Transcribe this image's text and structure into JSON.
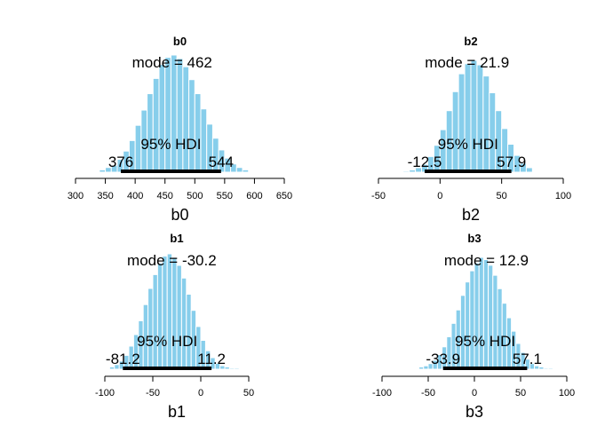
{
  "chart_data": [
    {
      "type": "histogram",
      "param": "b0",
      "title": "b0",
      "xlabel": "b0",
      "mode_label": "mode = 462",
      "hdi_label": "95% HDI",
      "hdi_low_label": "376",
      "hdi_high_label": "544",
      "mode": 462,
      "hdi": [
        376,
        544
      ],
      "xlim": [
        300,
        650
      ],
      "ticks": [
        300,
        350,
        400,
        450,
        500,
        550,
        600,
        650
      ],
      "tick_labels": [
        "300",
        "350",
        "400",
        "450",
        "500",
        "550",
        "600",
        "650"
      ],
      "bins": [
        {
          "x": 345,
          "h": 0.02
        },
        {
          "x": 355,
          "h": 0.04
        },
        {
          "x": 365,
          "h": 0.06
        },
        {
          "x": 375,
          "h": 0.11
        },
        {
          "x": 385,
          "h": 0.18
        },
        {
          "x": 395,
          "h": 0.27
        },
        {
          "x": 405,
          "h": 0.4
        },
        {
          "x": 415,
          "h": 0.53
        },
        {
          "x": 425,
          "h": 0.67
        },
        {
          "x": 435,
          "h": 0.8
        },
        {
          "x": 445,
          "h": 0.92
        },
        {
          "x": 455,
          "h": 0.98
        },
        {
          "x": 465,
          "h": 1.0
        },
        {
          "x": 475,
          "h": 0.97
        },
        {
          "x": 485,
          "h": 0.9
        },
        {
          "x": 495,
          "h": 0.79
        },
        {
          "x": 505,
          "h": 0.67
        },
        {
          "x": 515,
          "h": 0.54
        },
        {
          "x": 525,
          "h": 0.41
        },
        {
          "x": 535,
          "h": 0.29
        },
        {
          "x": 545,
          "h": 0.19
        },
        {
          "x": 555,
          "h": 0.12
        },
        {
          "x": 565,
          "h": 0.07
        },
        {
          "x": 575,
          "h": 0.04
        },
        {
          "x": 585,
          "h": 0.02
        }
      ]
    },
    {
      "type": "histogram",
      "param": "b2",
      "title": "b2",
      "xlabel": "b2",
      "mode_label": "mode = 21.9",
      "hdi_label": "95% HDI",
      "hdi_low_label": "-12.5",
      "hdi_high_label": "57.9",
      "mode": 21.9,
      "hdi": [
        -12.5,
        57.9
      ],
      "xlim": [
        -50,
        100
      ],
      "ticks": [
        -50,
        0,
        50,
        100
      ],
      "tick_labels": [
        "-50",
        "0",
        "50",
        "100"
      ],
      "bins": [
        {
          "x": -27.5,
          "h": 0.01
        },
        {
          "x": -22.5,
          "h": 0.02
        },
        {
          "x": -17.5,
          "h": 0.04
        },
        {
          "x": -12.5,
          "h": 0.07
        },
        {
          "x": -7.5,
          "h": 0.14
        },
        {
          "x": -2.5,
          "h": 0.24
        },
        {
          "x": 2.5,
          "h": 0.38
        },
        {
          "x": 7.5,
          "h": 0.55
        },
        {
          "x": 12.5,
          "h": 0.72
        },
        {
          "x": 17.5,
          "h": 0.88
        },
        {
          "x": 22.5,
          "h": 0.97
        },
        {
          "x": 27.5,
          "h": 1.0
        },
        {
          "x": 32.5,
          "h": 0.96
        },
        {
          "x": 37.5,
          "h": 0.86
        },
        {
          "x": 42.5,
          "h": 0.71
        },
        {
          "x": 47.5,
          "h": 0.55
        },
        {
          "x": 52.5,
          "h": 0.39
        },
        {
          "x": 57.5,
          "h": 0.25
        },
        {
          "x": 62.5,
          "h": 0.15
        },
        {
          "x": 67.5,
          "h": 0.08
        },
        {
          "x": 72.5,
          "h": 0.04
        }
      ]
    },
    {
      "type": "histogram",
      "param": "b1",
      "title": "b1",
      "xlabel": "b1",
      "mode_label": "mode = -30.2",
      "hdi_label": "95% HDI",
      "hdi_low_label": "-81.2",
      "hdi_high_label": "11.2",
      "mode": -30.2,
      "hdi": [
        -81.2,
        11.2
      ],
      "xlim": [
        -100,
        50
      ],
      "ticks": [
        -100,
        -50,
        0,
        50
      ],
      "tick_labels": [
        "-100",
        "-50",
        "0",
        "50"
      ],
      "bins": [
        {
          "x": -92.5,
          "h": 0.02
        },
        {
          "x": -87.5,
          "h": 0.04
        },
        {
          "x": -82.5,
          "h": 0.07
        },
        {
          "x": -77.5,
          "h": 0.12
        },
        {
          "x": -72.5,
          "h": 0.2
        },
        {
          "x": -67.5,
          "h": 0.3
        },
        {
          "x": -62.5,
          "h": 0.42
        },
        {
          "x": -57.5,
          "h": 0.56
        },
        {
          "x": -52.5,
          "h": 0.7
        },
        {
          "x": -47.5,
          "h": 0.82
        },
        {
          "x": -42.5,
          "h": 0.92
        },
        {
          "x": -37.5,
          "h": 0.98
        },
        {
          "x": -32.5,
          "h": 1.0
        },
        {
          "x": -27.5,
          "h": 0.97
        },
        {
          "x": -22.5,
          "h": 0.9
        },
        {
          "x": -17.5,
          "h": 0.79
        },
        {
          "x": -12.5,
          "h": 0.65
        },
        {
          "x": -7.5,
          "h": 0.51
        },
        {
          "x": -2.5,
          "h": 0.37
        },
        {
          "x": 2.5,
          "h": 0.25
        },
        {
          "x": 7.5,
          "h": 0.16
        },
        {
          "x": 12.5,
          "h": 0.1
        },
        {
          "x": 17.5,
          "h": 0.05
        },
        {
          "x": 22.5,
          "h": 0.03
        },
        {
          "x": 27.5,
          "h": 0.02
        },
        {
          "x": 32.5,
          "h": 0.01
        },
        {
          "x": 37.5,
          "h": 0.01
        }
      ]
    },
    {
      "type": "histogram",
      "param": "b3",
      "title": "b3",
      "xlabel": "b3",
      "mode_label": "mode = 12.9",
      "hdi_label": "95% HDI",
      "hdi_low_label": "-33.9",
      "hdi_high_label": "57.1",
      "mode": 12.9,
      "hdi": [
        -33.9,
        57.1
      ],
      "xlim": [
        -100,
        100
      ],
      "ticks": [
        -100,
        -50,
        0,
        50,
        100
      ],
      "tick_labels": [
        "-100",
        "-50",
        "0",
        "50",
        "100"
      ],
      "bins": [
        {
          "x": -57.5,
          "h": 0.02
        },
        {
          "x": -52.5,
          "h": 0.03
        },
        {
          "x": -47.5,
          "h": 0.05
        },
        {
          "x": -42.5,
          "h": 0.08
        },
        {
          "x": -37.5,
          "h": 0.13
        },
        {
          "x": -32.5,
          "h": 0.2
        },
        {
          "x": -27.5,
          "h": 0.29
        },
        {
          "x": -22.5,
          "h": 0.41
        },
        {
          "x": -17.5,
          "h": 0.53
        },
        {
          "x": -12.5,
          "h": 0.66
        },
        {
          "x": -7.5,
          "h": 0.78
        },
        {
          "x": -2.5,
          "h": 0.88
        },
        {
          "x": 2.5,
          "h": 0.95
        },
        {
          "x": 7.5,
          "h": 1.0
        },
        {
          "x": 12.5,
          "h": 0.98
        },
        {
          "x": 17.5,
          "h": 0.93
        },
        {
          "x": 22.5,
          "h": 0.84
        },
        {
          "x": 27.5,
          "h": 0.72
        },
        {
          "x": 32.5,
          "h": 0.59
        },
        {
          "x": 37.5,
          "h": 0.46
        },
        {
          "x": 42.5,
          "h": 0.34
        },
        {
          "x": 47.5,
          "h": 0.23
        },
        {
          "x": 52.5,
          "h": 0.15
        },
        {
          "x": 57.5,
          "h": 0.09
        },
        {
          "x": 62.5,
          "h": 0.05
        },
        {
          "x": 67.5,
          "h": 0.03
        },
        {
          "x": 72.5,
          "h": 0.02
        },
        {
          "x": 77.5,
          "h": 0.01
        },
        {
          "x": 82.5,
          "h": 0.01
        }
      ]
    }
  ],
  "colors": {
    "bar_fill": "#87CEEB",
    "bar_edge": "#ffffff",
    "hdi_line": "#000000",
    "axis": "#000000"
  }
}
